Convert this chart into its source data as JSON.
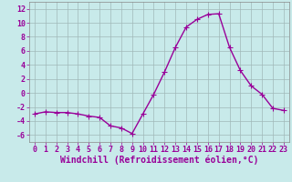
{
  "hours": [
    0,
    1,
    2,
    3,
    4,
    5,
    6,
    7,
    8,
    9,
    10,
    11,
    12,
    13,
    14,
    15,
    16,
    17,
    18,
    19,
    20,
    21,
    22,
    23
  ],
  "windchill": [
    -3.0,
    -2.7,
    -2.8,
    -2.8,
    -3.0,
    -3.3,
    -3.5,
    -4.7,
    -5.0,
    -5.8,
    -3.0,
    -0.2,
    3.0,
    6.5,
    9.4,
    10.5,
    11.2,
    11.3,
    6.5,
    3.2,
    1.0,
    -0.2,
    -2.2,
    -2.5
  ],
  "line_color": "#990099",
  "bg_color": "#c8eaea",
  "grid_color": "#a0b8b8",
  "xlabel": "Windchill (Refroidissement éolien,°C)",
  "xlabel_color": "#990099",
  "ylabel_color": "#990099",
  "tick_color": "#990099",
  "xlim": [
    -0.5,
    23.5
  ],
  "ylim": [
    -7,
    13
  ],
  "yticks": [
    -6,
    -4,
    -2,
    0,
    2,
    4,
    6,
    8,
    10,
    12
  ],
  "xticks": [
    0,
    1,
    2,
    3,
    4,
    5,
    6,
    7,
    8,
    9,
    10,
    11,
    12,
    13,
    14,
    15,
    16,
    17,
    18,
    19,
    20,
    21,
    22,
    23
  ],
  "marker": "+",
  "markersize": 4,
  "linewidth": 1.0,
  "font_size_ticks": 6,
  "font_size_xlabel": 7
}
